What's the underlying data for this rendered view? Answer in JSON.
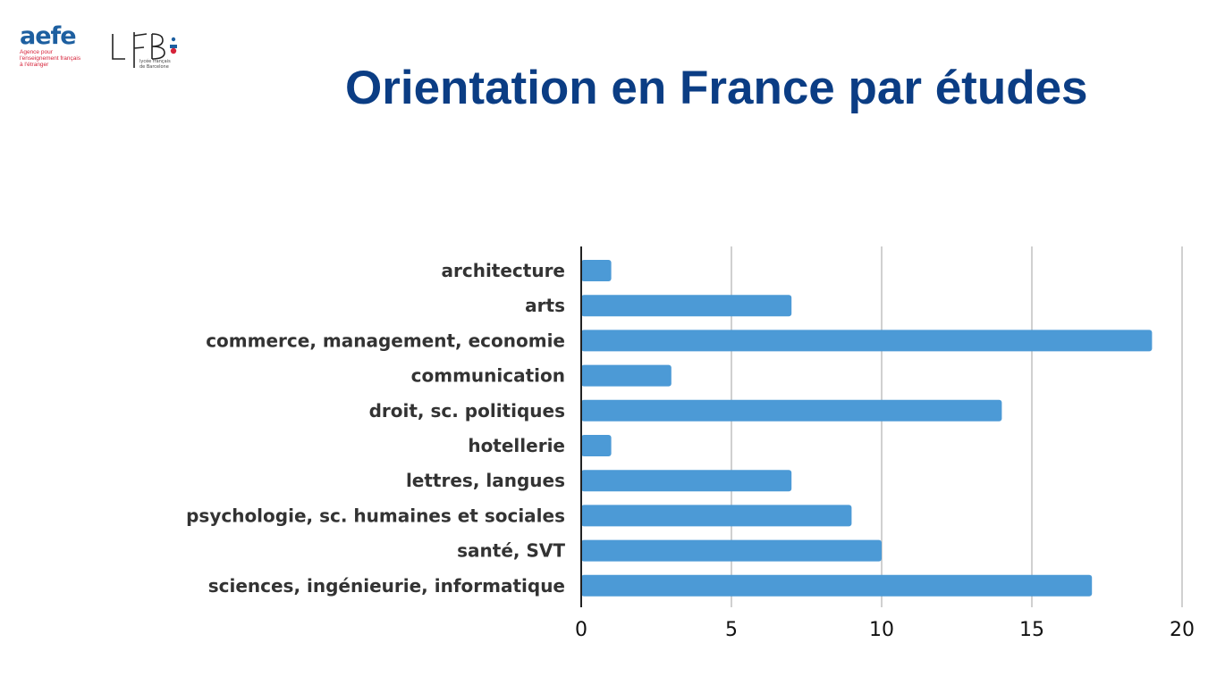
{
  "header": {
    "title": "Orientation en France par études",
    "logo_aefe": {
      "word": "aefe",
      "line1": "Agence pour",
      "line2": "l'enseignement français",
      "line3": "à l'étranger"
    },
    "logo_lfb": {
      "mark": "LFB",
      "line1": "lycée français",
      "line2": "de Barcelone"
    }
  },
  "chart_data": {
    "type": "bar",
    "orientation": "horizontal",
    "title": "",
    "xlabel": "",
    "ylabel": "",
    "categories": [
      "architecture",
      "arts",
      "commerce, management, economie",
      "communication",
      "droit, sc. politiques",
      "hotellerie",
      "lettres, langues",
      "psychologie, sc. humaines et sociales",
      "santé, SVT",
      "sciences, ingénieurie, informatique"
    ],
    "values": [
      1,
      7,
      19,
      3,
      14,
      1,
      7,
      9,
      10,
      17
    ],
    "xlim": [
      0,
      20
    ],
    "xticks": [
      0,
      5,
      10,
      15,
      20
    ],
    "grid": true,
    "legend": "none",
    "bar_color": "#4c9ad6",
    "grid_color": "#d0d0d0"
  }
}
